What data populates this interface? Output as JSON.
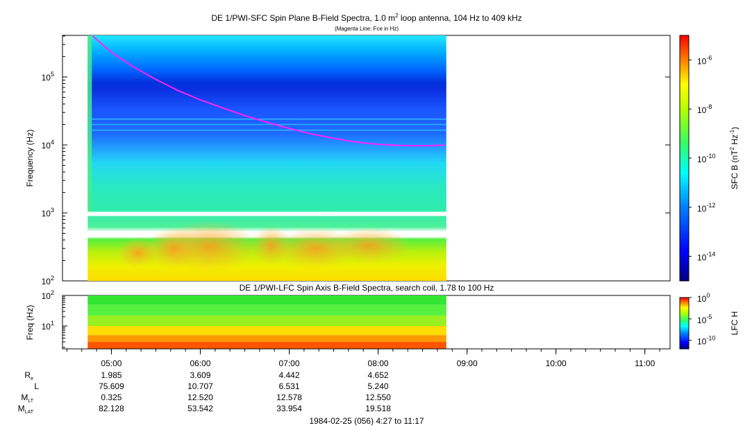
{
  "top_panel": {
    "title_pre": "DE 1/PWI-SFC  Spin Plane B-Field Spectra, 1.0 m",
    "title_sup": "2",
    "title_post": " loop antenna, 104 Hz to 409 kHz",
    "subtitle": "(Magenta Line: Fce in Hz)",
    "ylabel": "Frequency (Hz)",
    "colorbar_label_pre": "SFC B (nT",
    "colorbar_label_sup1": "2",
    "colorbar_label_mid": " Hz",
    "colorbar_label_sup2": "-1",
    "colorbar_label_post": ")"
  },
  "bottom_panel": {
    "title": "DE 1/PWI-LFC  Spin Axis B-Field Spectra, search coil, 1.78 to 100 Hz",
    "ylabel": "Freq (Hz)",
    "colorbar_label": "LFC H"
  },
  "ephemeris": {
    "rows": [
      {
        "label_main": "R",
        "label_sub": "e",
        "values": [
          "1.985",
          "3.609",
          "4.442",
          "4.652"
        ]
      },
      {
        "label_main": "L",
        "label_sub": "",
        "values": [
          "75.609",
          "10.707",
          "6.531",
          "5.240"
        ]
      },
      {
        "label_main": "M",
        "label_sub": "LT",
        "values": [
          "0.325",
          "12.520",
          "12.578",
          "12.550"
        ]
      },
      {
        "label_main": "M",
        "label_sub": "LAT",
        "values": [
          "82.128",
          "53.542",
          "33.954",
          "19.518"
        ]
      }
    ]
  },
  "footer": "1984-02-25 (056) 4:27 to 11:17",
  "colors": {
    "magenta": "#ff22ff",
    "colormap": [
      "#00007f",
      "#0000ff",
      "#007fff",
      "#00ffff",
      "#7fff7f",
      "#ffff00",
      "#ff7f00",
      "#ff0000"
    ]
  },
  "chart_data": [
    {
      "type": "heatmap",
      "name": "SFC",
      "x_range_hours": [
        4.45,
        11.2833
      ],
      "data_x_range_hours": [
        4.7333,
        8.7667
      ],
      "y_scale": "log",
      "ylim": [
        100,
        409000
      ],
      "y_ticks": [
        {
          "value": 100,
          "mant": "10",
          "exp": "2"
        },
        {
          "value": 1000,
          "mant": "10",
          "exp": "3"
        },
        {
          "value": 10000,
          "mant": "10",
          "exp": "4"
        },
        {
          "value": 100000,
          "mant": "10",
          "exp": "5"
        }
      ],
      "colorbar": {
        "scale": "log",
        "range": [
          1e-15,
          1e-05
        ],
        "ticks": [
          {
            "value": 1e-14,
            "mant": "10",
            "exp": "-14"
          },
          {
            "value": 1e-12,
            "mant": "10",
            "exp": "-12"
          },
          {
            "value": 1e-10,
            "mant": "10",
            "exp": "-10"
          },
          {
            "value": 1e-08,
            "mant": "10",
            "exp": "-8"
          },
          {
            "value": 1e-06,
            "mant": "10",
            "exp": "-6"
          }
        ]
      },
      "fce_line": {
        "x_hours": [
          4.79,
          5.0,
          5.25,
          5.5,
          5.75,
          6.0,
          6.25,
          6.5,
          6.75,
          7.0,
          7.25,
          7.5,
          7.75,
          8.0,
          8.25,
          8.5,
          8.75
        ],
        "y_hz": [
          400000,
          230000,
          140000,
          92000,
          63000,
          46000,
          35000,
          27000,
          21500,
          17500,
          14500,
          12500,
          11000,
          10200,
          9800,
          9700,
          9900
        ]
      }
    },
    {
      "type": "heatmap",
      "name": "LFC",
      "x_range_hours": [
        4.45,
        11.2833
      ],
      "data_x_range_hours": [
        4.7333,
        8.7667
      ],
      "y_scale": "log",
      "ylim": [
        1.78,
        100
      ],
      "y_ticks": [
        {
          "value": 10,
          "mant": "10",
          "exp": "1"
        },
        {
          "value": 100,
          "mant": "10",
          "exp": "2"
        }
      ],
      "colorbar": {
        "scale": "log",
        "range": [
          1e-12,
          1
        ],
        "ticks": [
          {
            "value": 1e-10,
            "mant": "10",
            "exp": "-10"
          },
          {
            "value": 1e-05,
            "mant": "10",
            "exp": "-5"
          },
          {
            "value": 1,
            "mant": "10",
            "exp": "0"
          }
        ]
      },
      "bands": [
        {
          "from_hz": 50,
          "to_hz": 100,
          "color": "#33e633"
        },
        {
          "from_hz": 22,
          "to_hz": 50,
          "color": "#55f040"
        },
        {
          "from_hz": 10,
          "to_hz": 22,
          "color": "#99f020"
        },
        {
          "from_hz": 5,
          "to_hz": 10,
          "color": "#ffdd00"
        },
        {
          "from_hz": 3,
          "to_hz": 5,
          "color": "#ff9900"
        },
        {
          "from_hz": 1.78,
          "to_hz": 3,
          "color": "#ff5500"
        }
      ]
    }
  ],
  "x_axis": {
    "label_ticks": [
      {
        "hour": 5,
        "label": "05:00"
      },
      {
        "hour": 6,
        "label": "06:00"
      },
      {
        "hour": 7,
        "label": "07:00"
      },
      {
        "hour": 8,
        "label": "08:00"
      },
      {
        "hour": 9,
        "label": "09:00"
      },
      {
        "hour": 10,
        "label": "10:00"
      },
      {
        "hour": 11,
        "label": "11:00"
      }
    ]
  }
}
